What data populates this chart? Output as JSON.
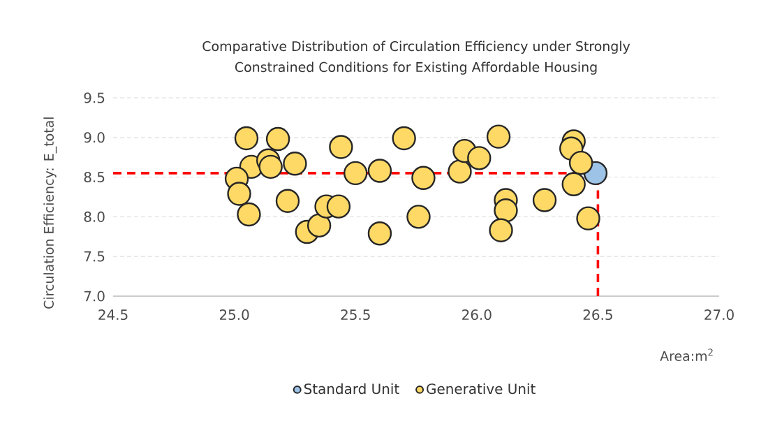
{
  "chart_data": {
    "type": "scatter",
    "title": "Comparative Distribution of Circulation Efficiency under Strongly Constrained Conditions for Existing Affordable Housing",
    "xlabel": "Area:m$^{2}$",
    "ylabel": "Circulation Efficiency: E_total",
    "xlim": [
      24.5,
      27.0
    ],
    "xticks": [
      {
        "value": 24.5,
        "label": "24.5"
      },
      {
        "value": 25.0,
        "label": "25.0"
      },
      {
        "value": 25.5,
        "label": "25.5"
      },
      {
        "value": 26.0,
        "label": "26.0"
      },
      {
        "value": 26.5,
        "label": "26.5"
      },
      {
        "value": 27.0,
        "label": "27.0"
      }
    ],
    "ylim": [
      7.0,
      9.5
    ],
    "yticks": [
      {
        "value": 7.0,
        "label": "7.0"
      },
      {
        "value": 7.5,
        "label": "7.5"
      },
      {
        "value": 8.0,
        "label": "8.0"
      },
      {
        "value": 8.5,
        "label": "8.5"
      },
      {
        "value": 9.0,
        "label": "9.0"
      },
      {
        "value": 9.5,
        "label": "9.5"
      }
    ],
    "grid": "y",
    "legend": "bottom",
    "marker": "circle",
    "ref_lines": [
      {
        "axis": "y",
        "value": 8.55,
        "color": "#ff0000",
        "line_style": "dashed"
      },
      {
        "axis": "x",
        "value": 26.5,
        "color": "#ff0000",
        "line_style": "dashed"
      }
    ],
    "series": [
      {
        "name": "Standard Unit",
        "color": "#9dc3e6",
        "x": [
          26.49
        ],
        "values": [
          8.55
        ]
      },
      {
        "name": "Generative Unit",
        "color": "#ffd966",
        "x": [
          25.05,
          25.18,
          25.07,
          25.14,
          25.15,
          25.25,
          25.01,
          25.02,
          25.06,
          25.22,
          25.3,
          25.35,
          25.38,
          25.43,
          25.44,
          25.5,
          25.6,
          25.6,
          25.7,
          25.78,
          25.76,
          25.93,
          25.95,
          26.01,
          26.09,
          26.12,
          26.12,
          26.1,
          26.28,
          26.4,
          26.39,
          26.43,
          26.4,
          26.46
        ],
        "values": [
          8.99,
          8.98,
          8.63,
          8.71,
          8.63,
          8.67,
          8.48,
          8.29,
          8.03,
          8.2,
          7.81,
          7.89,
          8.13,
          8.13,
          8.88,
          8.55,
          8.58,
          7.79,
          8.99,
          8.49,
          8.0,
          8.57,
          8.83,
          8.74,
          9.01,
          8.21,
          8.08,
          7.83,
          8.21,
          8.95,
          8.86,
          8.68,
          8.41,
          7.98
        ]
      }
    ]
  }
}
